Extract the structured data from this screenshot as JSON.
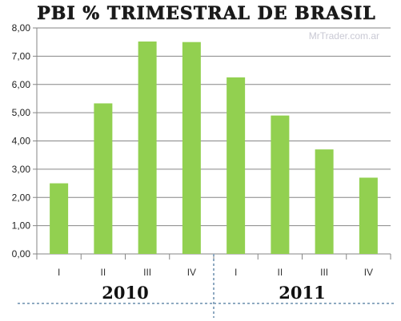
{
  "watermark": "MrTrader.com.ar",
  "chart_data": {
    "type": "bar",
    "title": "PBI % TRIMESTRAL DE BRASIL",
    "xlabel": "",
    "ylabel": "",
    "categories": [
      "I",
      "II",
      "III",
      "IV",
      "I",
      "II",
      "III",
      "IV"
    ],
    "groups": [
      {
        "label": "2010",
        "start": 0,
        "count": 4
      },
      {
        "label": "2011",
        "start": 4,
        "count": 4
      }
    ],
    "values": [
      2.5,
      5.33,
      7.52,
      7.5,
      6.25,
      4.9,
      3.7,
      2.7
    ],
    "yticks": [
      "0,00",
      "1,00",
      "2,00",
      "3,00",
      "4,00",
      "5,00",
      "6,00",
      "7,00",
      "8,00"
    ],
    "ylim": [
      0,
      8
    ],
    "grid": true,
    "legend": "none",
    "colors": {
      "bar": "#92d050",
      "grid": "#868686",
      "divider": "#8ea9c1"
    }
  }
}
